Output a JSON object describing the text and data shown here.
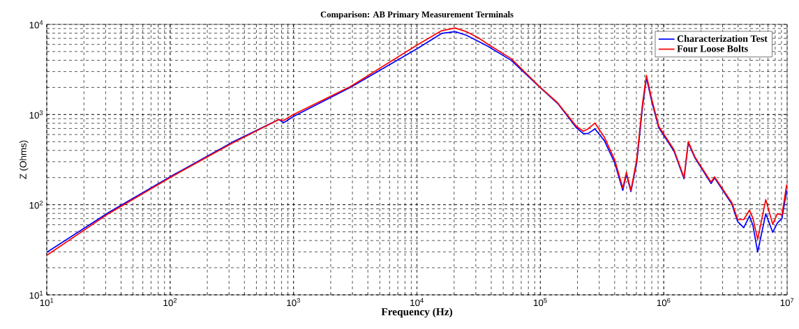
{
  "chart_data": {
    "type": "line",
    "title": "Comparison: AB Primary Measurement Terminals",
    "xlabel": "Frequency (Hz)",
    "ylabel": "Z (Ohms)",
    "log": "xy",
    "grid": true,
    "legend": "top right",
    "marker": "none",
    "line_style": "solid",
    "xlim": [
      10,
      10000000
    ],
    "ylim": [
      10,
      10000
    ],
    "xticks": [
      {
        "value": 10,
        "label": "10$^{1}$"
      },
      {
        "value": 100,
        "label": "10$^{2}$"
      },
      {
        "value": 1000,
        "label": "10$^{3}$"
      },
      {
        "value": 10000,
        "label": "10$^{4}$"
      },
      {
        "value": 100000,
        "label": "10$^{5}$"
      },
      {
        "value": 1000000,
        "label": "10$^{6}$"
      },
      {
        "value": 10000000,
        "label": "10$^{7}$"
      }
    ],
    "yticks": [
      {
        "value": 10,
        "label": "10$^{1}$"
      },
      {
        "value": 100,
        "label": "10$^{2}$"
      },
      {
        "value": 1000,
        "label": "10$^{3}$"
      },
      {
        "value": 10000,
        "label": "10$^{4}$"
      }
    ],
    "x": [
      10,
      31.6,
      100,
      316,
      759,
      832,
      1000,
      2880,
      10000,
      15850,
      20400,
      25100,
      31600,
      37700,
      58100,
      98600,
      138000,
      196000,
      223000,
      243000,
      277000,
      330000,
      400000,
      466000,
      498000,
      542000,
      604000,
      673000,
      724000,
      802000,
      912000,
      1210000,
      1460000,
      1580000,
      1790000,
      2420000,
      2580000,
      3570000,
      3980000,
      4450000,
      4950000,
      5280000,
      5770000,
      6710000,
      7640000,
      8340000,
      9080000,
      9910000
    ],
    "series": [
      {
        "name": "Characterization Test",
        "color": "#0000ff",
        "values": [
          29.6,
          81.8,
          204,
          490,
          879,
          813,
          955,
          1995,
          5370,
          7940,
          8320,
          7590,
          6460,
          5700,
          3990,
          2020,
          1330,
          714,
          615,
          615,
          693,
          515,
          293,
          144,
          218,
          140,
          293,
          1220,
          2560,
          1370,
          714,
          394,
          194,
          485,
          330,
          172,
          199,
          101,
          64.6,
          55.6,
          74.8,
          59.0,
          29.9,
          79.4,
          49.4,
          62.7,
          70.5,
          144
        ]
      },
      {
        "name": "Four Loose Bolts",
        "color": "#ff0000",
        "values": [
          27.5,
          79.4,
          200,
          479,
          879,
          861,
          1000,
          2040,
          5890,
          8510,
          9120,
          8320,
          7080,
          6030,
          4170,
          2040,
          1350,
          741,
          653,
          692,
          804,
          562,
          316,
          153,
          229,
          144,
          316,
          1320,
          2720,
          1450,
          741,
          407,
          200,
          501,
          339,
          178,
          204,
          105,
          68.4,
          68.4,
          86.9,
          70.8,
          41.3,
          114,
          60.8,
          79.4,
          77.1,
          167
        ]
      }
    ]
  }
}
